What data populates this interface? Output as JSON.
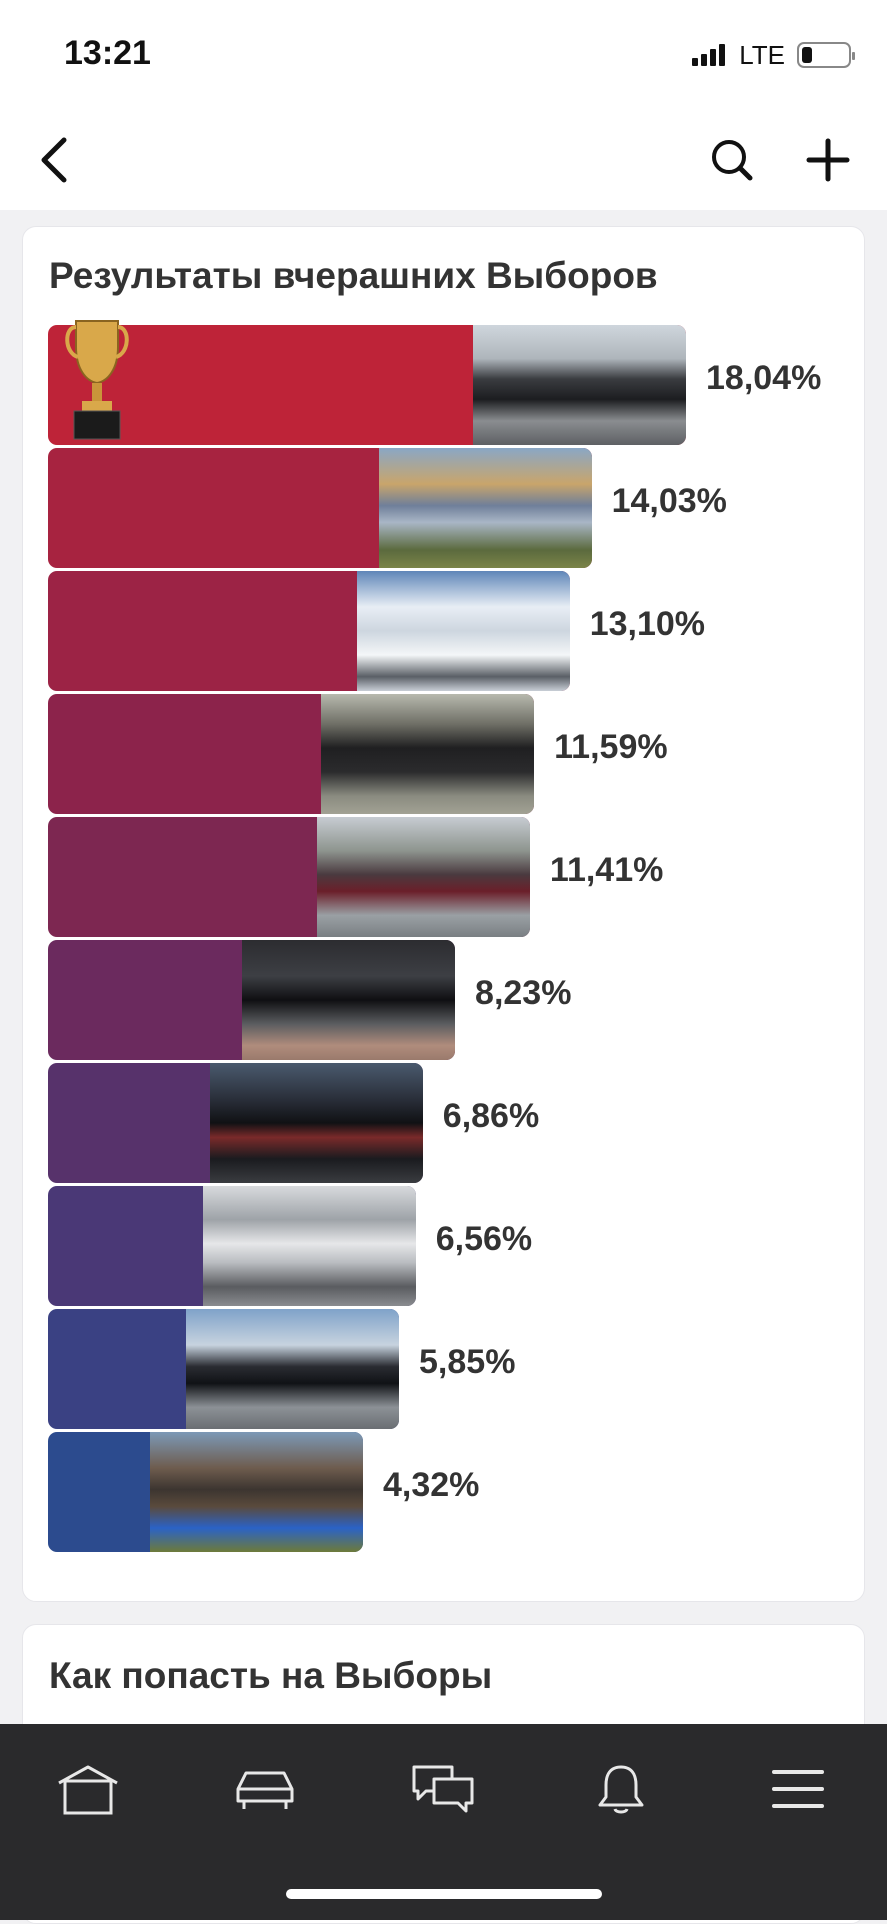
{
  "status": {
    "time": "13:21",
    "network": "LTE"
  },
  "icons": {
    "back": "chevron-left-icon",
    "search": "search-icon",
    "add": "plus-icon",
    "trophy": "trophy-icon"
  },
  "results": {
    "title": "Результаты вчерашних Выборов",
    "items": [
      {
        "value": "18,04%",
        "share": 18.04,
        "color": "#be2338"
      },
      {
        "value": "14,03%",
        "share": 14.03,
        "color": "#a72340"
      },
      {
        "value": "13,10%",
        "share": 13.1,
        "color": "#9c2345"
      },
      {
        "value": "11,59%",
        "share": 11.59,
        "color": "#8c234b"
      },
      {
        "value": "11,41%",
        "share": 11.41,
        "color": "#7d2751"
      },
      {
        "value": "8,23%",
        "share": 8.23,
        "color": "#6b2a5e"
      },
      {
        "value": "6,86%",
        "share": 6.86,
        "color": "#57326b"
      },
      {
        "value": "6,56%",
        "share": 6.56,
        "color": "#4a3876"
      },
      {
        "value": "5,85%",
        "share": 5.85,
        "color": "#3a4183"
      },
      {
        "value": "4,32%",
        "share": 4.32,
        "color": "#2c4b8e"
      }
    ]
  },
  "section2": {
    "title": "Как попасть на Выборы"
  },
  "tabs": [
    {
      "name": "home",
      "icon": "home-icon"
    },
    {
      "name": "garage",
      "icon": "car-icon"
    },
    {
      "name": "messages",
      "icon": "chat-icon"
    },
    {
      "name": "notifications",
      "icon": "bell-icon"
    },
    {
      "name": "menu",
      "icon": "menu-icon"
    }
  ]
}
